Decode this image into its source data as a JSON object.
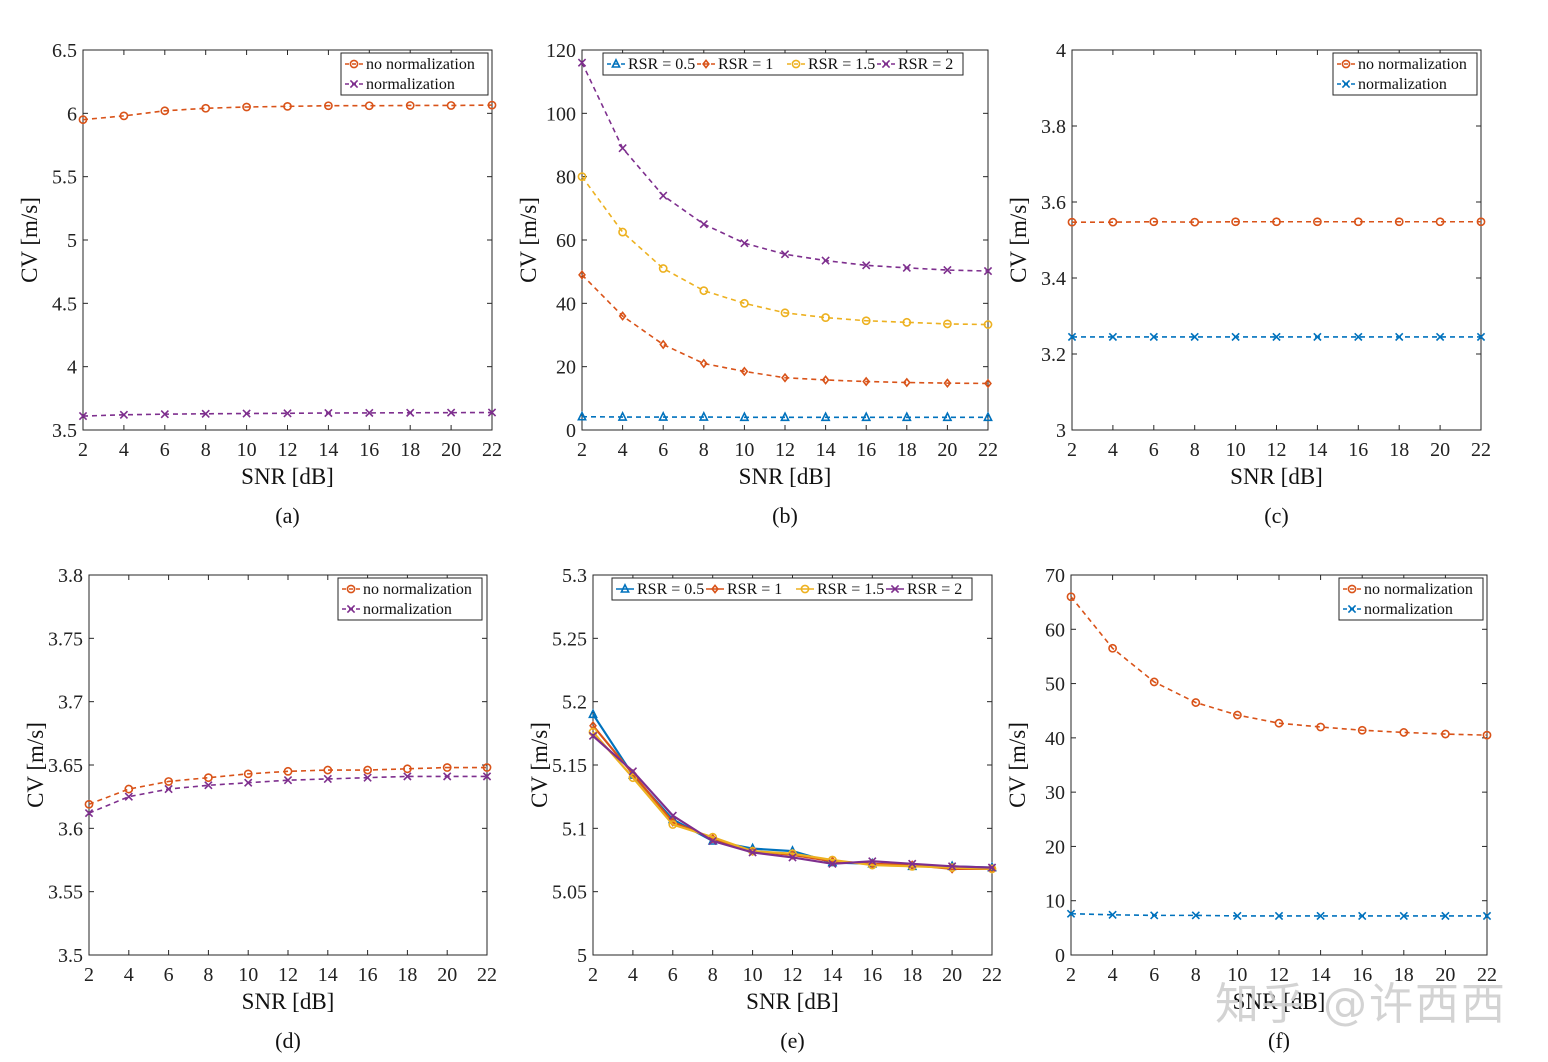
{
  "watermark": "知乎 @许西西",
  "chart_data": [
    {
      "type": "line",
      "caption": "(a)",
      "xlabel": "SNR [dB]",
      "ylabel": "CV [m/s]",
      "x": [
        2,
        4,
        6,
        8,
        10,
        12,
        14,
        16,
        18,
        20,
        22
      ],
      "xticks": [
        "2",
        "4",
        "6",
        "8",
        "10",
        "12",
        "14",
        "16",
        "18",
        "20",
        "22"
      ],
      "ylim": [
        3.5,
        6.5
      ],
      "yticks": [
        3.5,
        4,
        4.5,
        5,
        5.5,
        6,
        6.5
      ],
      "ytick_labels": [
        "3.5",
        "4",
        "4.5",
        "5",
        "5.5",
        "6",
        "6.5"
      ],
      "legend_position": "top-right",
      "series": [
        {
          "name": "no normalization",
          "color": "#d95319",
          "marker": "o",
          "dashed": true,
          "values": [
            5.95,
            5.98,
            6.02,
            6.04,
            6.05,
            6.055,
            6.06,
            6.06,
            6.062,
            6.062,
            6.065
          ]
        },
        {
          "name": "normalization",
          "color": "#7e2f8e",
          "marker": "x",
          "dashed": true,
          "values": [
            3.61,
            3.62,
            3.625,
            3.628,
            3.63,
            3.632,
            3.634,
            3.635,
            3.636,
            3.637,
            3.638
          ]
        }
      ]
    },
    {
      "type": "line",
      "caption": "(b)",
      "xlabel": "SNR [dB]",
      "ylabel": "CV [m/s]",
      "x": [
        2,
        4,
        6,
        8,
        10,
        12,
        14,
        16,
        18,
        20,
        22
      ],
      "xticks": [
        "2",
        "4",
        "6",
        "8",
        "10",
        "12",
        "14",
        "16",
        "18",
        "20",
        "22"
      ],
      "ylim": [
        0,
        120
      ],
      "yticks": [
        0,
        20,
        40,
        60,
        80,
        100,
        120
      ],
      "ytick_labels": [
        "0",
        "20",
        "40",
        "60",
        "80",
        "100",
        "120"
      ],
      "legend_position": "top-horizontal",
      "series": [
        {
          "name": "RSR = 0.5",
          "color": "#0072bd",
          "marker": "^",
          "dashed": true,
          "values": [
            4.2,
            4.1,
            4.1,
            4.1,
            4.0,
            4.0,
            4.0,
            4.0,
            4.0,
            4.0,
            4.0
          ]
        },
        {
          "name": "RSR = 1",
          "color": "#d95319",
          "marker": "d",
          "dashed": true,
          "values": [
            49,
            36,
            27,
            21,
            18.5,
            16.5,
            15.8,
            15.3,
            15.0,
            14.8,
            14.7
          ]
        },
        {
          "name": "RSR = 1.5",
          "color": "#edb120",
          "marker": "o",
          "dashed": true,
          "values": [
            80,
            62.5,
            51,
            44,
            40,
            37,
            35.5,
            34.5,
            34,
            33.5,
            33.3
          ]
        },
        {
          "name": "RSR = 2",
          "color": "#7e2f8e",
          "marker": "x",
          "dashed": true,
          "values": [
            116,
            89,
            74,
            65,
            59,
            55.5,
            53.5,
            52,
            51.2,
            50.5,
            50.2
          ]
        }
      ]
    },
    {
      "type": "line",
      "caption": "(c)",
      "xlabel": "SNR [dB]",
      "ylabel": "CV [m/s]",
      "x": [
        2,
        4,
        6,
        8,
        10,
        12,
        14,
        16,
        18,
        20,
        22
      ],
      "xticks": [
        "2",
        "4",
        "6",
        "8",
        "10",
        "12",
        "14",
        "16",
        "18",
        "20",
        "22"
      ],
      "ylim": [
        3,
        4
      ],
      "yticks": [
        3,
        3.2,
        3.4,
        3.6,
        3.8,
        4
      ],
      "ytick_labels": [
        "3",
        "3.2",
        "3.4",
        "3.6",
        "3.8",
        "4"
      ],
      "legend_position": "top-right",
      "series": [
        {
          "name": "no normalization",
          "color": "#d95319",
          "marker": "o",
          "dashed": true,
          "values": [
            3.547,
            3.547,
            3.548,
            3.547,
            3.548,
            3.548,
            3.548,
            3.548,
            3.548,
            3.548,
            3.548
          ]
        },
        {
          "name": "normalization",
          "color": "#0072bd",
          "marker": "x",
          "dashed": true,
          "values": [
            3.245,
            3.245,
            3.245,
            3.245,
            3.245,
            3.245,
            3.245,
            3.245,
            3.245,
            3.245,
            3.245
          ]
        }
      ]
    },
    {
      "type": "line",
      "caption": "(d)",
      "xlabel": "SNR [dB]",
      "ylabel": "CV [m/s]",
      "x": [
        2,
        4,
        6,
        8,
        10,
        12,
        14,
        16,
        18,
        20,
        22
      ],
      "xticks": [
        "2",
        "4",
        "6",
        "8",
        "10",
        "12",
        "14",
        "16",
        "18",
        "20",
        "22"
      ],
      "ylim": [
        3.5,
        3.8
      ],
      "yticks": [
        3.5,
        3.55,
        3.6,
        3.65,
        3.7,
        3.75,
        3.8
      ],
      "ytick_labels": [
        "3.5",
        "3.55",
        "3.6",
        "3.65",
        "3.7",
        "3.75",
        "3.8"
      ],
      "legend_position": "top-right",
      "series": [
        {
          "name": "no normalization",
          "color": "#d95319",
          "marker": "o",
          "dashed": true,
          "values": [
            3.619,
            3.631,
            3.637,
            3.64,
            3.643,
            3.645,
            3.646,
            3.646,
            3.647,
            3.648,
            3.648
          ]
        },
        {
          "name": "normalization",
          "color": "#7e2f8e",
          "marker": "x",
          "dashed": true,
          "values": [
            3.612,
            3.625,
            3.631,
            3.634,
            3.636,
            3.638,
            3.639,
            3.64,
            3.641,
            3.641,
            3.641
          ]
        }
      ]
    },
    {
      "type": "line",
      "caption": "(e)",
      "xlabel": "SNR [dB]",
      "ylabel": "CV [m/s]",
      "x": [
        2,
        4,
        6,
        8,
        10,
        12,
        14,
        16,
        18,
        20,
        22
      ],
      "xticks": [
        "2",
        "4",
        "6",
        "8",
        "10",
        "12",
        "14",
        "16",
        "18",
        "20",
        "22"
      ],
      "ylim": [
        5,
        5.3
      ],
      "yticks": [
        5,
        5.05,
        5.1,
        5.15,
        5.2,
        5.25,
        5.3
      ],
      "ytick_labels": [
        "5",
        "5.05",
        "5.1",
        "5.15",
        "5.2",
        "5.25",
        "5.3"
      ],
      "legend_position": "top-horizontal",
      "series": [
        {
          "name": "RSR = 0.5",
          "color": "#0072bd",
          "marker": "^",
          "dashed": false,
          "values": [
            5.19,
            5.142,
            5.107,
            5.09,
            5.084,
            5.082,
            5.073,
            5.072,
            5.07,
            5.07,
            5.069
          ]
        },
        {
          "name": "RSR = 1",
          "color": "#d95319",
          "marker": "d",
          "dashed": false,
          "values": [
            5.181,
            5.143,
            5.105,
            5.092,
            5.082,
            5.079,
            5.074,
            5.072,
            5.071,
            5.068,
            5.068
          ]
        },
        {
          "name": "RSR = 1.5",
          "color": "#edb120",
          "marker": "o",
          "dashed": false,
          "values": [
            5.176,
            5.14,
            5.103,
            5.093,
            5.082,
            5.08,
            5.075,
            5.071,
            5.07,
            5.069,
            5.068
          ]
        },
        {
          "name": "RSR = 2",
          "color": "#7e2f8e",
          "marker": "x",
          "dashed": false,
          "values": [
            5.173,
            5.145,
            5.11,
            5.09,
            5.081,
            5.077,
            5.072,
            5.074,
            5.072,
            5.07,
            5.069
          ]
        }
      ]
    },
    {
      "type": "line",
      "caption": "(f)",
      "xlabel": "SNR [dB]",
      "ylabel": "CV [m/s]",
      "x": [
        2,
        4,
        6,
        8,
        10,
        12,
        14,
        16,
        18,
        20,
        22
      ],
      "xticks": [
        "2",
        "4",
        "6",
        "8",
        "10",
        "12",
        "14",
        "16",
        "18",
        "20",
        "22"
      ],
      "ylim": [
        0,
        70
      ],
      "yticks": [
        0,
        10,
        20,
        30,
        40,
        50,
        60,
        70
      ],
      "ytick_labels": [
        "0",
        "10",
        "20",
        "30",
        "40",
        "50",
        "60",
        "70"
      ],
      "legend_position": "top-right",
      "series": [
        {
          "name": "no normalization",
          "color": "#d95319",
          "marker": "o",
          "dashed": true,
          "values": [
            66,
            56.5,
            50.3,
            46.5,
            44.2,
            42.7,
            42,
            41.4,
            41,
            40.7,
            40.5
          ]
        },
        {
          "name": "normalization",
          "color": "#0072bd",
          "marker": "x",
          "dashed": true,
          "values": [
            7.6,
            7.4,
            7.3,
            7.3,
            7.2,
            7.2,
            7.2,
            7.2,
            7.2,
            7.2,
            7.2
          ]
        }
      ]
    }
  ]
}
